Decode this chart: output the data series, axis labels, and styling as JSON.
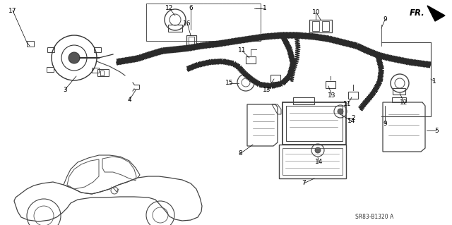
{
  "background_color": "#ffffff",
  "diagram_code": "SR83-B1320 A",
  "figsize": [
    6.4,
    3.19
  ],
  "dpi": 100,
  "gray": "#888888",
  "light_gray": "#cccccc",
  "dark": "#222222"
}
